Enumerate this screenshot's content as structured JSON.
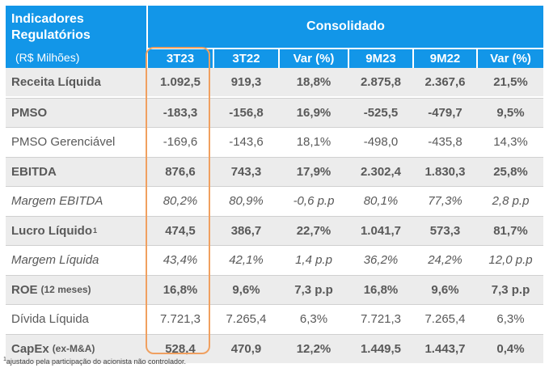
{
  "header": {
    "title_line1": "Indicadores",
    "title_line2": "Regulatórios",
    "unit": "(R$ Milhões)",
    "group": "Consolidado",
    "columns": [
      "3T23",
      "3T22",
      "Var (%)",
      "9M23",
      "9M22",
      "Var (%)"
    ]
  },
  "rows": [
    {
      "label": "Receita Líquida",
      "label_suffix": "",
      "label_sup": "",
      "style": "bold",
      "values": [
        "1.092,5",
        "919,3",
        "18,8%",
        "2.875,8",
        "2.367,6",
        "21,5%"
      ]
    },
    {
      "label": "PMSO",
      "label_suffix": "",
      "label_sup": "",
      "style": "bold",
      "values": [
        "-183,3",
        "-156,8",
        "16,9%",
        "-525,5",
        "-479,7",
        "9,5%"
      ]
    },
    {
      "label": "PMSO Gerenciável",
      "label_suffix": "",
      "label_sup": "",
      "style": "normal",
      "values": [
        "-169,6",
        "-143,6",
        "18,1%",
        "-498,0",
        "-435,8",
        "14,3%"
      ]
    },
    {
      "label": "EBITDA",
      "label_suffix": "",
      "label_sup": "",
      "style": "bold",
      "values": [
        "876,6",
        "743,3",
        "17,9%",
        "2.302,4",
        "1.830,3",
        "25,8%"
      ]
    },
    {
      "label": "Margem EBITDA",
      "label_suffix": "",
      "label_sup": "",
      "style": "italic",
      "values": [
        "80,2%",
        "80,9%",
        "-0,6 p.p",
        "80,1%",
        "77,3%",
        "2,8 p.p"
      ]
    },
    {
      "label": "Lucro Líquido",
      "label_suffix": "",
      "label_sup": "1",
      "style": "bold",
      "values": [
        "474,5",
        "386,7",
        "22,7%",
        "1.041,7",
        "573,3",
        "81,7%"
      ]
    },
    {
      "label": "Margem Líquida",
      "label_suffix": "",
      "label_sup": "",
      "style": "italic",
      "values": [
        "43,4%",
        "42,1%",
        "1,4 p.p",
        "36,2%",
        "24,2%",
        "12,0 p.p"
      ]
    },
    {
      "label": "ROE",
      "label_suffix": "(12 meses)",
      "label_sup": "",
      "style": "bold",
      "values": [
        "16,8%",
        "9,6%",
        "7,3 p.p",
        "16,8%",
        "9,6%",
        "7,3 p.p"
      ]
    },
    {
      "label": "Dívida Líquida",
      "label_suffix": "",
      "label_sup": "",
      "style": "normal",
      "values": [
        "7.721,3",
        "7.265,4",
        "6,3%",
        "7.721,3",
        "7.265,4",
        "6,3%"
      ]
    },
    {
      "label": "CapEx",
      "label_suffix": "(ex-M&A)",
      "label_sup": "",
      "style": "bold",
      "values": [
        "528,4",
        "470,9",
        "12,2%",
        "1.449,5",
        "1.443,7",
        "0,4%"
      ]
    }
  ],
  "footnote": {
    "sup": "1",
    "text": "ajustado pela participação do acionista não controlador."
  },
  "colors": {
    "header_bg": "#1296e8",
    "row_shade": "#ececec",
    "highlight_border": "#f0a060",
    "text": "#595959"
  }
}
